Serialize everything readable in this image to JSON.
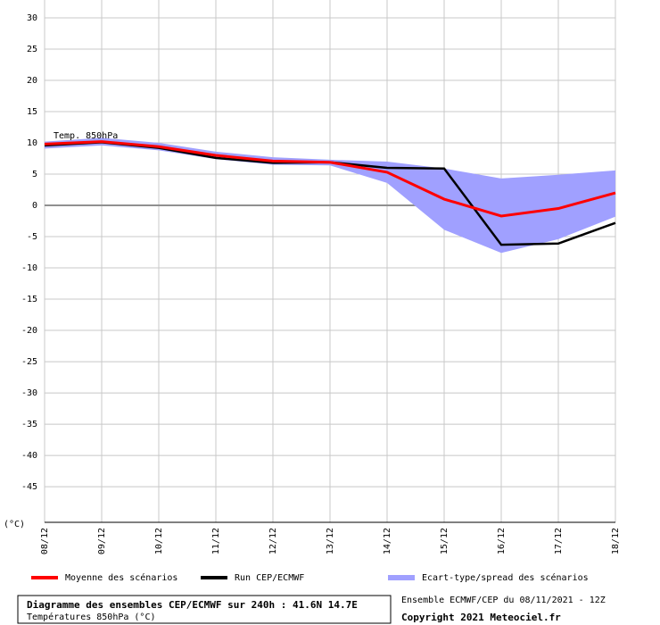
{
  "chart_data": {
    "type": "line",
    "annotation": "Temp. 850hPa",
    "y_label": "(°C)",
    "categories": [
      "08/12",
      "09/12",
      "10/12",
      "11/12",
      "12/12",
      "13/12",
      "14/12",
      "15/12",
      "16/12",
      "17/12",
      "18/12"
    ],
    "series": [
      {
        "name": "Moyenne des scénarios",
        "color": "#ff0000",
        "values": [
          9.8,
          10.2,
          9.4,
          8.0,
          7.1,
          6.9,
          5.3,
          1.0,
          -1.7,
          -0.5,
          2.0
        ]
      },
      {
        "name": "Run CEP/ECMWF",
        "color": "#000000",
        "values": [
          9.6,
          10.1,
          9.2,
          7.6,
          6.8,
          6.9,
          6.0,
          5.9,
          -6.3,
          -6.1,
          -2.8
        ]
      },
      {
        "name": "Ecart-type/spread des scénarios",
        "color": "#a0a0ff",
        "upper": [
          10.2,
          10.8,
          10.0,
          8.6,
          7.7,
          7.3,
          7.0,
          5.9,
          4.3,
          4.9,
          5.6
        ],
        "lower": [
          9.1,
          9.6,
          8.8,
          7.4,
          6.5,
          6.4,
          3.6,
          -3.9,
          -7.6,
          -5.4,
          -1.8
        ]
      }
    ],
    "ylim": [
      -50.7,
      30
    ],
    "yticks": [
      30,
      25,
      20,
      15,
      10,
      5,
      0,
      -5,
      -10,
      -15,
      -20,
      -25,
      -30,
      -35,
      -40,
      -45
    ],
    "grid": true,
    "footer": {
      "title": "Diagramme des ensembles CEP/ECMWF sur 240h : 41.6N 14.7E",
      "subtitle": "Températures 850hPa (°C)",
      "run": "Ensemble ECMWF/CEP du 08/11/2021 - 12Z",
      "copyright": "Copyright 2021 Meteociel.fr"
    }
  }
}
